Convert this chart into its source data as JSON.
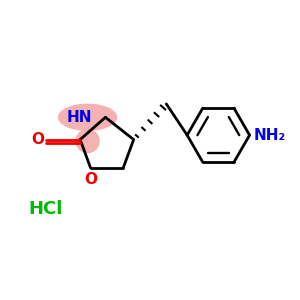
{
  "bg_color": "#ffffff",
  "bond_color": "#000000",
  "N_color": "#0000ee",
  "O_color": "#ee0000",
  "NH_highlight": "#f4aaaa",
  "HCl_color": "#00bb00",
  "NH_label": "HN",
  "O_ring_label": "O",
  "O_carbonyl_label": "O",
  "NH2_label": "NH₂",
  "HCl_label": "HCl",
  "figsize": [
    3.0,
    3.0
  ],
  "dpi": 100,
  "xlim": [
    0,
    10
  ],
  "ylim": [
    0,
    10
  ]
}
